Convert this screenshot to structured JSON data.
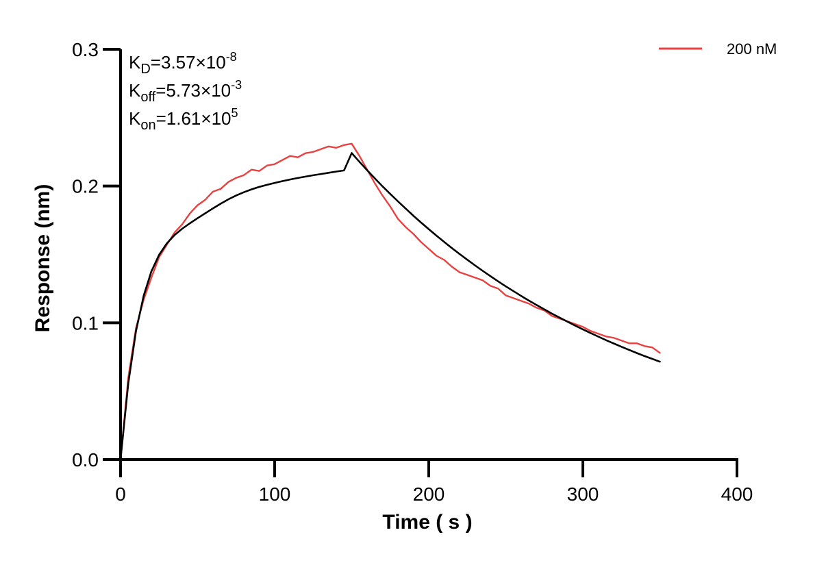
{
  "chart_data": {
    "type": "line",
    "xlabel": "Time ( s )",
    "ylabel": "Response (nm)",
    "xlim": [
      0,
      400
    ],
    "ylim": [
      0,
      0.3
    ],
    "x_ticks": [
      "0",
      "100",
      "200",
      "300",
      "400"
    ],
    "y_ticks": [
      "0.0",
      "0.1",
      "0.2",
      "0.3"
    ],
    "grid": false,
    "legend_position": "top-right",
    "colors": {
      "measured": "#e8413f",
      "fit": "#000000"
    },
    "kinetics": {
      "kd": {
        "label": "K",
        "sub": "D",
        "value": "=3.57×10",
        "exp": "-8"
      },
      "koff": {
        "label": "K",
        "sub": "off",
        "value": "=5.73×10",
        "exp": "-3"
      },
      "kon": {
        "label": "K",
        "sub": "on",
        "value": "=1.61×10",
        "exp": "5"
      }
    },
    "association_end": 150,
    "end_time": 350,
    "series": [
      {
        "name": "200 nM",
        "role": "measured",
        "x": [
          0,
          5,
          10,
          15,
          20,
          25,
          30,
          35,
          40,
          45,
          50,
          55,
          60,
          65,
          70,
          75,
          80,
          85,
          90,
          95,
          100,
          105,
          110,
          115,
          120,
          125,
          130,
          135,
          140,
          145,
          150,
          155,
          160,
          165,
          170,
          175,
          180,
          185,
          190,
          195,
          200,
          205,
          210,
          215,
          220,
          225,
          230,
          235,
          240,
          245,
          250,
          255,
          260,
          265,
          270,
          275,
          280,
          285,
          290,
          295,
          300,
          305,
          310,
          315,
          320,
          325,
          330,
          335,
          340,
          345,
          350
        ],
        "y": [
          0.0,
          0.06,
          0.096,
          0.117,
          0.133,
          0.148,
          0.157,
          0.166,
          0.172,
          0.18,
          0.186,
          0.19,
          0.196,
          0.198,
          0.203,
          0.206,
          0.208,
          0.212,
          0.211,
          0.215,
          0.216,
          0.219,
          0.222,
          0.221,
          0.224,
          0.225,
          0.227,
          0.229,
          0.228,
          0.23,
          0.231,
          0.222,
          0.212,
          0.202,
          0.193,
          0.185,
          0.176,
          0.17,
          0.165,
          0.159,
          0.154,
          0.149,
          0.146,
          0.141,
          0.137,
          0.135,
          0.133,
          0.131,
          0.127,
          0.125,
          0.12,
          0.118,
          0.116,
          0.114,
          0.111,
          0.109,
          0.105,
          0.103,
          0.101,
          0.099,
          0.097,
          0.094,
          0.092,
          0.09,
          0.089,
          0.087,
          0.085,
          0.085,
          0.083,
          0.082,
          0.078
        ]
      },
      {
        "role": "fit",
        "x": [
          0,
          5,
          10,
          15,
          20,
          25,
          30,
          35,
          40,
          45,
          50,
          55,
          60,
          65,
          70,
          75,
          80,
          85,
          90,
          95,
          100,
          105,
          110,
          115,
          120,
          125,
          130,
          135,
          140,
          145,
          150,
          155,
          160,
          165,
          170,
          175,
          180,
          185,
          190,
          195,
          200,
          205,
          210,
          215,
          220,
          225,
          230,
          235,
          240,
          245,
          250,
          255,
          260,
          265,
          270,
          275,
          280,
          285,
          290,
          295,
          300,
          305,
          310,
          315,
          320,
          325,
          330,
          335,
          340,
          345,
          350
        ],
        "y": [
          0.0,
          0.0557,
          0.0938,
          0.1198,
          0.1376,
          0.1497,
          0.158,
          0.1641,
          0.1688,
          0.1728,
          0.1765,
          0.1801,
          0.1837,
          0.1871,
          0.1903,
          0.1931,
          0.1955,
          0.1976,
          0.1994,
          0.2009,
          0.2023,
          0.2036,
          0.2048,
          0.2059,
          0.2069,
          0.2079,
          0.2088,
          0.2097,
          0.2106,
          0.2114,
          0.2241,
          0.2177,
          0.2116,
          0.2056,
          0.1998,
          0.1942,
          0.1888,
          0.1835,
          0.1783,
          0.1733,
          0.1685,
          0.1637,
          0.1591,
          0.1546,
          0.1503,
          0.1461,
          0.142,
          0.138,
          0.1341,
          0.1303,
          0.1266,
          0.1231,
          0.1196,
          0.1162,
          0.113,
          0.1098,
          0.1067,
          0.1037,
          0.1008,
          0.0979,
          0.0952,
          0.0925,
          0.0899,
          0.0873,
          0.0849,
          0.0825,
          0.0802,
          0.0779,
          0.0757,
          0.0736,
          0.0715
        ]
      }
    ]
  }
}
